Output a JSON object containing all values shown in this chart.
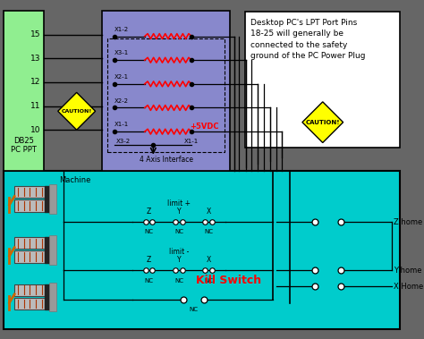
{
  "bg_color": "#666666",
  "db25_color": "#90EE90",
  "interface_color": "#8888CC",
  "note_color": "#FFFFFF",
  "machine_color": "#00CCCC",
  "db25_pins": [
    "15",
    "13",
    "12",
    "11",
    "10"
  ],
  "interface_rows": [
    "X1-2",
    "X3-1",
    "X2-1",
    "X2-2",
    "X1-1"
  ],
  "note_text": "Desktop PC's LPT Port Pins\n18-25 will generally be\nconnected to the safety\nground of the PC Power Plug",
  "interface_label": "4 Axis Interface",
  "machine_label": "Machine",
  "home_labels": [
    "Z home",
    "Y home",
    "X Home"
  ],
  "kill_switch_label": "Kill Switch",
  "limit_plus": "limit +",
  "limit_minus": "limit -",
  "svdc": "+5VDC",
  "caution": "CAUTION!",
  "nc": "NC",
  "x32": "X3-2",
  "x11_bot": "X1-1"
}
